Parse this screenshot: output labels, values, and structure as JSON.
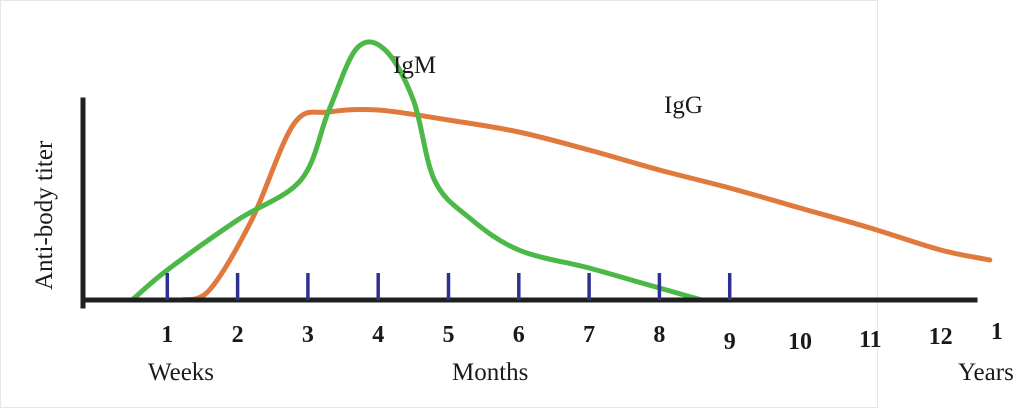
{
  "chart_data": {
    "type": "line",
    "ylabel": "Anti-body titer",
    "x_tick_labels": [
      "1",
      "2",
      "3",
      "4",
      "5",
      "6",
      "7",
      "8",
      "9",
      "10",
      "11",
      "12",
      "1"
    ],
    "x_group_labels": [
      "Weeks",
      "Months",
      "Years"
    ],
    "grid": false,
    "legend": "inline labels",
    "series": [
      {
        "name": "IgM",
        "color": "#4cb848",
        "points": [
          [
            0.5,
            0.0
          ],
          [
            1.0,
            0.15
          ],
          [
            2.0,
            0.4
          ],
          [
            2.9,
            0.6
          ],
          [
            3.3,
            0.95
          ],
          [
            3.7,
            1.26
          ],
          [
            4.1,
            1.25
          ],
          [
            4.5,
            1.0
          ],
          [
            4.8,
            0.6
          ],
          [
            5.3,
            0.41
          ],
          [
            6.0,
            0.25
          ],
          [
            7.0,
            0.16
          ],
          [
            7.8,
            0.08
          ],
          [
            8.6,
            0.0
          ]
        ]
      },
      {
        "name": "IgG",
        "color": "#e07a3c",
        "points": [
          [
            1.2,
            0.0
          ],
          [
            1.6,
            0.05
          ],
          [
            2.2,
            0.4
          ],
          [
            2.8,
            0.88
          ],
          [
            3.3,
            0.94
          ],
          [
            4.0,
            0.95
          ],
          [
            5.0,
            0.9
          ],
          [
            6.0,
            0.84
          ],
          [
            7.0,
            0.75
          ],
          [
            8.0,
            0.65
          ],
          [
            9.0,
            0.56
          ],
          [
            10.0,
            0.46
          ],
          [
            11.0,
            0.36
          ],
          [
            12.0,
            0.25
          ],
          [
            12.7,
            0.2
          ]
        ]
      }
    ]
  }
}
